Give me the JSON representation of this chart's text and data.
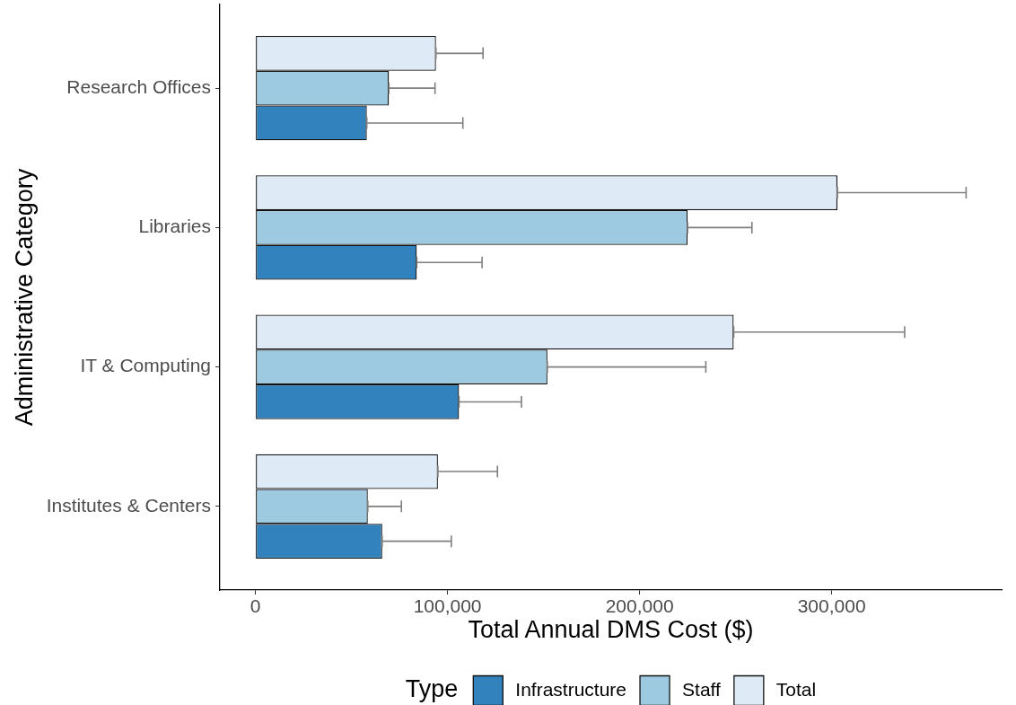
{
  "chart_data": {
    "type": "bar",
    "orientation": "horizontal",
    "xlabel": "Total Annual DMS Cost ($)",
    "ylabel": "Administrative Category",
    "legend_title": "Type",
    "legend": "bottom",
    "categories": [
      "Research Offices",
      "Libraries",
      "IT & Computing",
      "Institutes & Centers"
    ],
    "series": [
      {
        "name": "Infrastructure",
        "color": "#3182bd",
        "values": [
          58000,
          84000,
          106000,
          66000
        ],
        "errors": [
          [
            58000,
            108000
          ],
          [
            84000,
            118000
          ],
          [
            106000,
            138500
          ],
          [
            66000,
            102000
          ]
        ]
      },
      {
        "name": "Staff",
        "color": "#9ecae1",
        "values": [
          69500,
          225000,
          152000,
          58500
        ],
        "errors": [
          [
            69500,
            93500
          ],
          [
            225000,
            258500
          ],
          [
            152000,
            234500
          ],
          [
            58500,
            76000
          ]
        ]
      },
      {
        "name": "Total",
        "color": "#deebf7",
        "values": [
          94000,
          303000,
          249000,
          95000
        ],
        "errors": [
          [
            94000,
            118500
          ],
          [
            303000,
            370000
          ],
          [
            249000,
            338000
          ],
          [
            95000,
            126000
          ]
        ]
      }
    ],
    "xlim": [
      -18500,
      388500
    ],
    "xticks": [
      0,
      {
        "value": 100000,
        "label": "100,000"
      },
      {
        "value": 200000,
        "label": "200,000"
      },
      {
        "value": 300000,
        "label": "300,000"
      }
    ]
  }
}
